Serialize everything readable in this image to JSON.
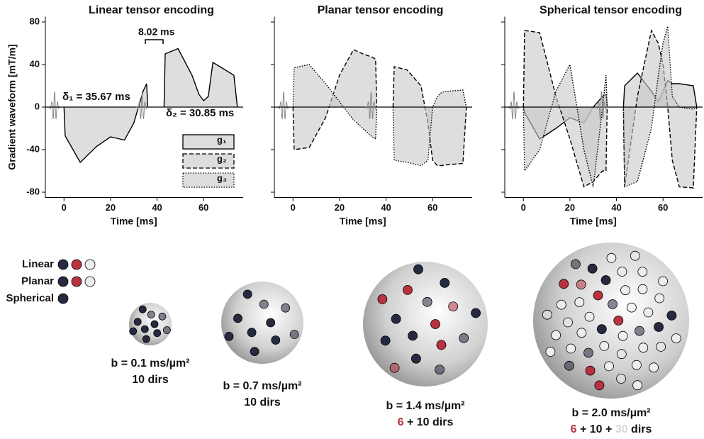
{
  "chart_data": [
    {
      "type": "line",
      "title": "Linear tensor encoding",
      "x_label": "Time [ms]",
      "y_label": "Gradient waveform [mT/m]",
      "x": [
        0,
        0.5,
        7,
        14,
        20,
        26,
        30,
        34,
        35.5,
        36,
        39,
        43,
        43.5,
        49,
        55,
        58,
        60,
        62,
        64,
        67,
        73,
        74.5
      ],
      "series": [
        {
          "name": "g₁",
          "dash": "solid",
          "values": [
            0,
            -27,
            -52,
            -37,
            -28,
            -31,
            -15,
            15,
            22,
            0,
            null,
            0,
            50,
            55,
            30,
            12,
            6,
            10,
            42,
            38,
            30,
            0
          ]
        }
      ],
      "legend": [
        {
          "name": "g₁",
          "dash": "solid"
        },
        {
          "name": "g₂",
          "dash": "dashed"
        },
        {
          "name": "g₃",
          "dash": "dotted"
        }
      ],
      "annotations": [
        "8.02 ms",
        {
          "symbol": "δ₁",
          "text": "= 35.67 ms"
        },
        {
          "symbol": "δ₂",
          "text": "= 30.85 ms"
        }
      ],
      "xlim": [
        -8,
        77
      ],
      "ylim": [
        -85,
        85
      ],
      "xticks": [
        0,
        20,
        40,
        60
      ],
      "yticks": [
        -80,
        -40,
        0,
        40,
        80
      ],
      "ytick_labels": true
    },
    {
      "type": "line",
      "title": "Planar tensor encoding",
      "x_label": "Time [ms]",
      "x": [
        0,
        0.5,
        7,
        14,
        20,
        26,
        30,
        34,
        35.5,
        36,
        39,
        43,
        43.5,
        49,
        55,
        58,
        60,
        62,
        64,
        67,
        73,
        74.5
      ],
      "series": [
        {
          "name": "g₂",
          "dash": "dashed",
          "values": [
            0,
            -40,
            -38,
            -10,
            30,
            54,
            50,
            47,
            45,
            0,
            null,
            0,
            38,
            35,
            20,
            -15,
            -50,
            -55,
            -55,
            -54,
            -53,
            0
          ]
        },
        {
          "name": "g₃",
          "dash": "dotted",
          "values": [
            0,
            37,
            40,
            22,
            5,
            -12,
            -20,
            -28,
            -30,
            0,
            null,
            0,
            -50,
            -52,
            -55,
            -50,
            0,
            10,
            14,
            15,
            16,
            0
          ]
        }
      ],
      "xlim": [
        -8,
        77
      ],
      "ylim": [
        -85,
        85
      ],
      "xticks": [
        0,
        20,
        40,
        60
      ],
      "yticks": [
        -80,
        -40,
        0,
        40,
        80
      ],
      "ytick_labels": false
    },
    {
      "type": "line",
      "title": "Spherical tensor encoding",
      "x_label": "Time [ms]",
      "x": [
        0,
        0.5,
        7,
        14,
        20,
        26,
        30,
        34,
        35.5,
        36,
        39,
        43,
        43.5,
        49,
        55,
        58,
        60,
        62,
        64,
        67,
        73,
        74.5
      ],
      "series": [
        {
          "name": "g₁",
          "dash": "solid",
          "values": [
            0,
            -5,
            -30,
            -20,
            -10,
            -15,
            0,
            10,
            12,
            0,
            null,
            0,
            20,
            32,
            15,
            5,
            15,
            25,
            22,
            22,
            20,
            0
          ]
        },
        {
          "name": "g₂",
          "dash": "dashed",
          "values": [
            0,
            72,
            70,
            10,
            -30,
            -75,
            -70,
            -60,
            -60,
            0,
            null,
            0,
            -75,
            10,
            72,
            60,
            40,
            0,
            -50,
            -75,
            -76,
            0
          ]
        },
        {
          "name": "g₃",
          "dash": "dotted",
          "values": [
            0,
            -60,
            -40,
            15,
            40,
            -40,
            -75,
            0,
            30,
            0,
            null,
            0,
            -75,
            -70,
            -20,
            30,
            60,
            76,
            10,
            0,
            -2,
            0
          ]
        }
      ],
      "xlim": [
        -8,
        77
      ],
      "ylim": [
        -85,
        85
      ],
      "xticks": [
        0,
        20,
        40,
        60
      ],
      "yticks": [
        -80,
        -40,
        0,
        40,
        80
      ],
      "ytick_labels": false
    }
  ],
  "encoding_legend": [
    {
      "label": "Linear",
      "colors": [
        "#262a40",
        "#b8323f",
        "#eeeeee"
      ]
    },
    {
      "label": "Planar",
      "colors": [
        "#262a40",
        "#b8323f",
        "#eeeeee"
      ]
    },
    {
      "label": "Spherical",
      "colors": [
        "#262a40"
      ]
    }
  ],
  "spheres": [
    {
      "b_label": "b = 0.1 ms/µm²",
      "dirs": [
        {
          "count": 10,
          "color": "#262a40"
        }
      ],
      "unit": "dirs"
    },
    {
      "b_label": "b = 0.7 ms/µm²",
      "dirs": [
        {
          "count": 10,
          "color": "#262a40"
        }
      ],
      "unit": "dirs"
    },
    {
      "b_label": "b = 1.4 ms/µm²",
      "dirs": [
        {
          "count": 6,
          "color": "#b8323f"
        },
        {
          "count": 10,
          "color": "#262a40"
        }
      ],
      "joiner": "+",
      "unit": "dirs"
    },
    {
      "b_label": "b = 2.0 ms/µm²",
      "dirs": [
        {
          "count": 6,
          "color": "#b8323f"
        },
        {
          "count": 10,
          "color": "#262a40"
        },
        {
          "count": 30,
          "color": "#eeeeee"
        }
      ],
      "joiner": "+",
      "unit": "dirs"
    }
  ]
}
